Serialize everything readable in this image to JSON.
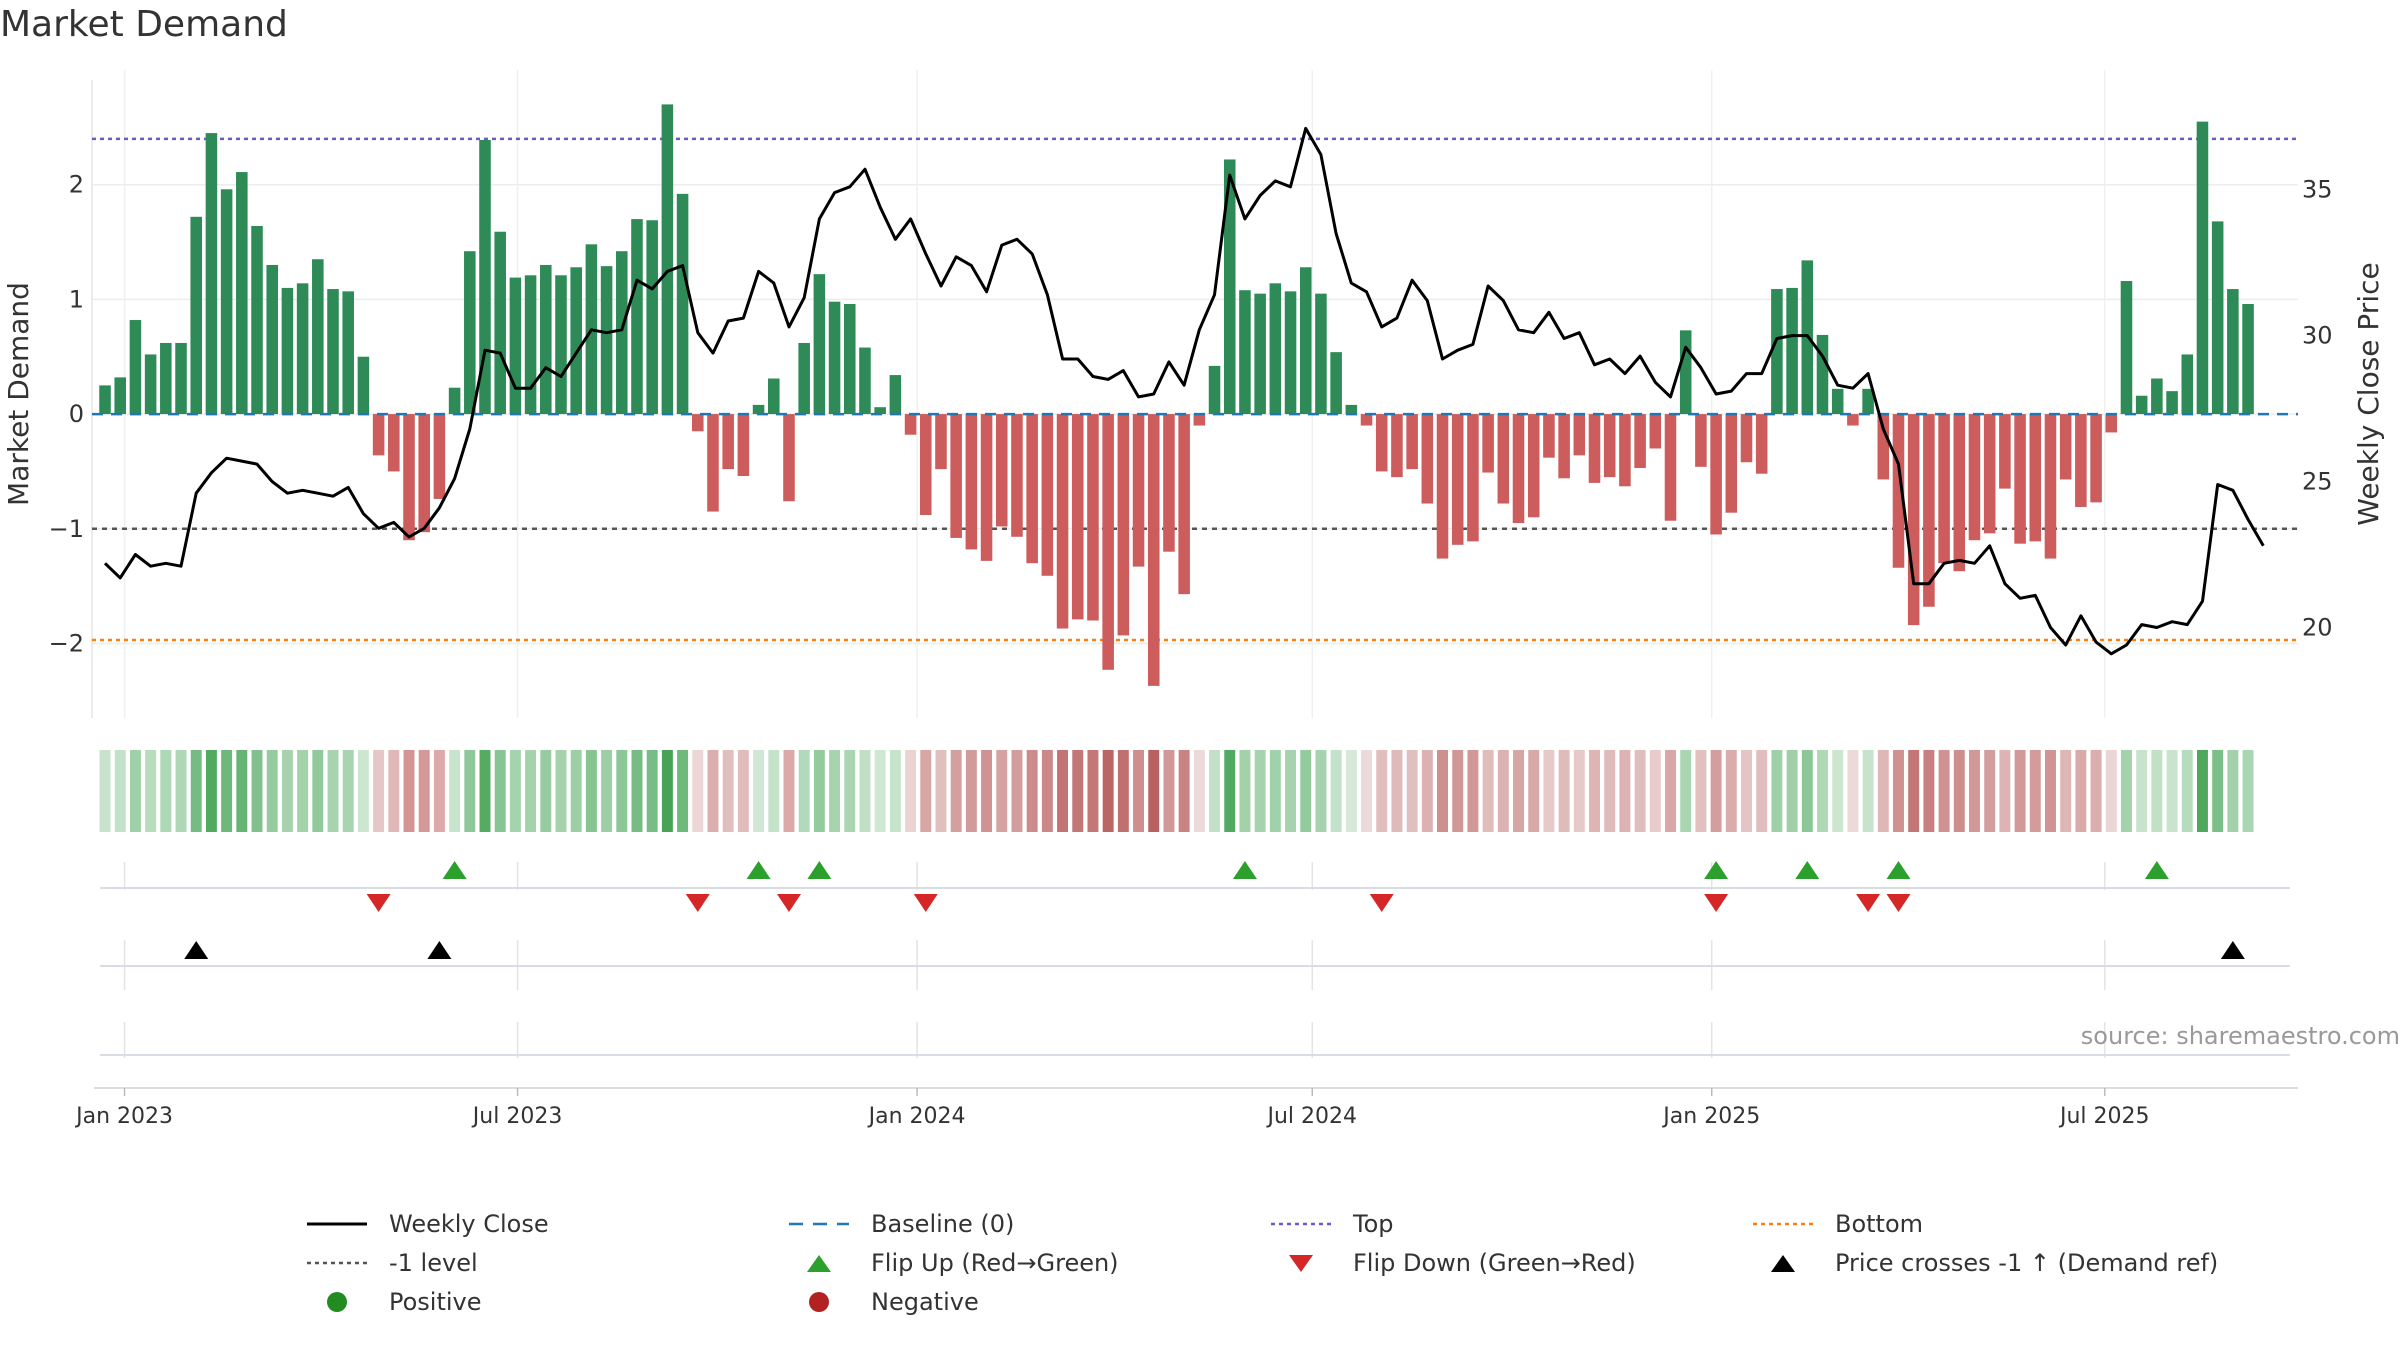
{
  "title": "Market Demand",
  "source": "source: sharemaestro.com",
  "colors": {
    "positive": "#2e8b57",
    "negative": "#cd5c5c",
    "close": "#000000",
    "baseline": "#1f77b4",
    "top": "#6a5acd",
    "bottom": "#ff7f0e",
    "neg1": "#555555",
    "flip_up": "#2ca02c",
    "flip_down": "#d62728",
    "cross": "#000000"
  },
  "legend": [
    {
      "label": "Weekly Close",
      "symbol": "line",
      "color": "#000000"
    },
    {
      "label": "Baseline (0)",
      "symbol": "dashed",
      "color": "#1f77b4"
    },
    {
      "label": "Top",
      "symbol": "dotted",
      "color": "#6a5acd"
    },
    {
      "label": "Bottom",
      "symbol": "dotted",
      "color": "#ff7f0e"
    },
    {
      "label": "-1 level",
      "symbol": "dotted",
      "color": "#555555"
    },
    {
      "label": "Flip Up (Red→Green)",
      "symbol": "tri-up",
      "color": "#2ca02c"
    },
    {
      "label": "Flip Down (Green→Red)",
      "symbol": "tri-down",
      "color": "#d62728"
    },
    {
      "label": "Price crosses -1 ↑ (Demand ref)",
      "symbol": "tri-up",
      "color": "#000000"
    },
    {
      "label": "Positive",
      "symbol": "dot",
      "color": "#228b22"
    },
    {
      "label": "Negative",
      "symbol": "dot",
      "color": "#b22222"
    }
  ],
  "chart_data": {
    "type": "bar",
    "title": "Market Demand",
    "ylabel": "Market Demand",
    "y2label": "Weekly Close Price",
    "ylim": [
      -2.65,
      3.0
    ],
    "y2lim": [
      16.9,
      39.1
    ],
    "yticks": [
      -2,
      -1,
      0,
      1,
      2
    ],
    "y2ticks": [
      20,
      25,
      30,
      35
    ],
    "ytick_labels": [
      "−2",
      "−1",
      "0",
      "1",
      "2"
    ],
    "y2tick_labels": [
      "20",
      "25",
      "30",
      "35"
    ],
    "x_range": [
      "2022-12-17",
      "2025-09-28"
    ],
    "start_week": "2022-12-23",
    "x_ticks": [
      {
        "date": "2023-01-01",
        "label": "Jan 2023"
      },
      {
        "date": "2023-07-01",
        "label": "Jul 2023"
      },
      {
        "date": "2024-01-01",
        "label": "Jan 2024"
      },
      {
        "date": "2024-07-01",
        "label": "Jul 2024"
      },
      {
        "date": "2025-01-01",
        "label": "Jan 2025"
      },
      {
        "date": "2025-07-01",
        "label": "Jul 2025"
      }
    ],
    "reference_lines": {
      "baseline": 0,
      "top": 2.4,
      "bottom": -1.97,
      "minus_one": -1
    },
    "demand": [
      0.25,
      0.32,
      0.82,
      0.52,
      0.62,
      0.62,
      1.72,
      2.45,
      1.96,
      2.11,
      1.64,
      1.3,
      1.1,
      1.14,
      1.35,
      1.09,
      1.07,
      0.5,
      -0.36,
      -0.5,
      -1.1,
      -1.03,
      -0.74,
      0.23,
      1.42,
      2.39,
      1.59,
      1.19,
      1.21,
      1.3,
      1.21,
      1.28,
      1.48,
      1.29,
      1.42,
      1.7,
      1.69,
      2.7,
      1.92,
      -0.15,
      -0.85,
      -0.48,
      -0.54,
      0.08,
      0.31,
      -0.76,
      0.62,
      1.22,
      0.98,
      0.96,
      0.58,
      0.06,
      0.34,
      -0.18,
      -0.88,
      -0.48,
      -1.08,
      -1.18,
      -1.28,
      -0.98,
      -1.07,
      -1.3,
      -1.41,
      -1.87,
      -1.79,
      -1.8,
      -2.23,
      -1.93,
      -1.33,
      -2.37,
      -1.2,
      -1.57,
      -0.1,
      0.42,
      2.22,
      1.08,
      1.05,
      1.14,
      1.07,
      1.28,
      1.05,
      0.54,
      0.08,
      -0.1,
      -0.5,
      -0.55,
      -0.48,
      -0.78,
      -1.26,
      -1.14,
      -1.11,
      -0.51,
      -0.78,
      -0.95,
      -0.9,
      -0.38,
      -0.56,
      -0.36,
      -0.6,
      -0.55,
      -0.63,
      -0.47,
      -0.3,
      -0.93,
      0.73,
      -0.46,
      -1.05,
      -0.86,
      -0.42,
      -0.52,
      1.09,
      1.1,
      1.34,
      0.69,
      0.22,
      -0.1,
      0.22,
      -0.57,
      -1.34,
      -1.84,
      -1.68,
      -1.3,
      -1.37,
      -1.1,
      -1.04,
      -0.65,
      -1.13,
      -1.11,
      -1.26,
      -0.57,
      -0.81,
      -0.77,
      -0.16,
      1.16,
      0.16,
      0.31,
      0.2,
      0.52,
      2.55,
      1.68,
      1.09,
      0.96
    ],
    "weekly_close": [
      22.2,
      21.7,
      22.5,
      22.1,
      22.2,
      22.1,
      24.6,
      25.3,
      25.8,
      25.7,
      25.6,
      25.0,
      24.6,
      24.7,
      24.6,
      24.5,
      24.8,
      23.9,
      23.4,
      23.6,
      23.1,
      23.4,
      24.1,
      25.1,
      26.8,
      29.5,
      29.4,
      28.2,
      28.2,
      28.9,
      28.6,
      29.4,
      30.2,
      30.1,
      30.2,
      31.9,
      31.6,
      32.2,
      32.4,
      30.1,
      29.4,
      30.5,
      30.6,
      32.2,
      31.8,
      30.3,
      31.3,
      34.0,
      34.9,
      35.1,
      35.7,
      34.4,
      33.3,
      34.0,
      32.8,
      31.7,
      32.7,
      32.4,
      31.5,
      33.1,
      33.3,
      32.8,
      31.4,
      29.2,
      29.2,
      28.6,
      28.5,
      28.8,
      27.9,
      28.0,
      29.1,
      28.3,
      30.2,
      31.4,
      35.5,
      34.0,
      34.8,
      35.3,
      35.1,
      37.1,
      36.2,
      33.5,
      31.8,
      31.5,
      30.3,
      30.6,
      31.9,
      31.2,
      29.2,
      29.5,
      29.7,
      31.7,
      31.2,
      30.2,
      30.1,
      30.8,
      29.9,
      30.1,
      29.0,
      29.2,
      28.7,
      29.3,
      28.4,
      27.9,
      29.6,
      28.9,
      28.0,
      28.1,
      28.7,
      28.7,
      29.9,
      30.0,
      30.0,
      29.3,
      28.3,
      28.2,
      28.7,
      26.8,
      25.6,
      21.5,
      21.5,
      22.2,
      22.3,
      22.2,
      22.8,
      21.5,
      21.0,
      21.1,
      20.0,
      19.4,
      20.4,
      19.5,
      19.1,
      19.4,
      20.1,
      20.0,
      20.2,
      20.1,
      20.9,
      24.9,
      24.7,
      23.7,
      22.8
    ],
    "flip_up_weeks": [
      23,
      43,
      47,
      75,
      106,
      112,
      118,
      135
    ],
    "flip_down_weeks": [
      18,
      39,
      45,
      54,
      84,
      106,
      116,
      118
    ],
    "cross_up_weeks": [
      6,
      22,
      140
    ],
    "strip_colors": [
      "#c8e3cc",
      "#c2e1c7",
      "#9fd0a8",
      "#b8dcbe",
      "#aed7b5",
      "#aed7b5",
      "#75bb82",
      "#52a960",
      "#6db87a",
      "#66b474",
      "#82c18e",
      "#96cb9f",
      "#a6d3ae",
      "#a3d2ab",
      "#91c99b",
      "#a7d4af",
      "#a8d5b0",
      "#cde6d1",
      "#e6c6c6",
      "#e0b8b8",
      "#d49494",
      "#d59797",
      "#dea9a9",
      "#c9e4cd",
      "#8ec89a",
      "#55ab62",
      "#88c594",
      "#a5d3ad",
      "#a3d2ab",
      "#97cca0",
      "#a3d2ab",
      "#9ccfa5",
      "#86c491",
      "#9ccfa5",
      "#8cc797",
      "#77bc84",
      "#78bd85",
      "#48a357",
      "#6eb97b",
      "#ecd6d6",
      "#dcafaf",
      "#e2bfbf",
      "#e1bcbc",
      "#cfe7d3",
      "#c5e2ca",
      "#dca8a8",
      "#b2d9b9",
      "#93cb9d",
      "#a7d4af",
      "#a9d5b1",
      "#c0dfc5",
      "#cfe7d3",
      "#c6e3cb",
      "#ebd3d3",
      "#d9a6a6",
      "#e2bfbf",
      "#d49f9f",
      "#d19b9b",
      "#cf9393",
      "#d6a2a2",
      "#d49d9d",
      "#cd8c8c",
      "#cb8888",
      "#c27474",
      "#c37777",
      "#c37777",
      "#bb6565",
      "#c07070",
      "#cf8f8f",
      "#b96161",
      "#d29898",
      "#c98383",
      "#ecd9d9",
      "#c2e0c7",
      "#52a961",
      "#a2d1aa",
      "#a6d3ae",
      "#a1d1a9",
      "#a6d3ae",
      "#93cb9d",
      "#a6d3ae",
      "#c4e1c9",
      "#d4e9d7",
      "#ecd9d9",
      "#e1bdbd",
      "#dfbaba",
      "#e2bfbf",
      "#dbb1b1",
      "#ce8f8f",
      "#d29696",
      "#d29797",
      "#e0bcbc",
      "#dbb1b1",
      "#d8a5a5",
      "#d9a9a9",
      "#e7c9c9",
      "#e0bbbb",
      "#e7c9c9",
      "#deb4b4",
      "#dfbaba",
      "#ddb2b2",
      "#e1bebe",
      "#e8cccc",
      "#d9a7a7",
      "#a9d5b1",
      "#e2c0c0",
      "#d59e9e",
      "#daacac",
      "#e4c5c5",
      "#e1bdbd",
      "#9fd0a8",
      "#9fd0a8",
      "#8cc797",
      "#b0d8b7",
      "#cce6d0",
      "#ecd9d9",
      "#c8e3cc",
      "#deb7b7",
      "#d09191",
      "#c37676",
      "#c77f7f",
      "#cf9191",
      "#ce8e8e",
      "#d29898",
      "#d49d9d",
      "#ddb3b3",
      "#d29999",
      "#d49b9b",
      "#d09494",
      "#dfb6b6",
      "#daaaaa",
      "#dbaeae",
      "#ebd5d5",
      "#a3d2ab",
      "#c7e3cc",
      "#c1e0c6",
      "#c9e4cd",
      "#b7dcbd",
      "#4ea75d",
      "#7dbf89",
      "#a2d1aa",
      "#abd6b2"
    ]
  }
}
